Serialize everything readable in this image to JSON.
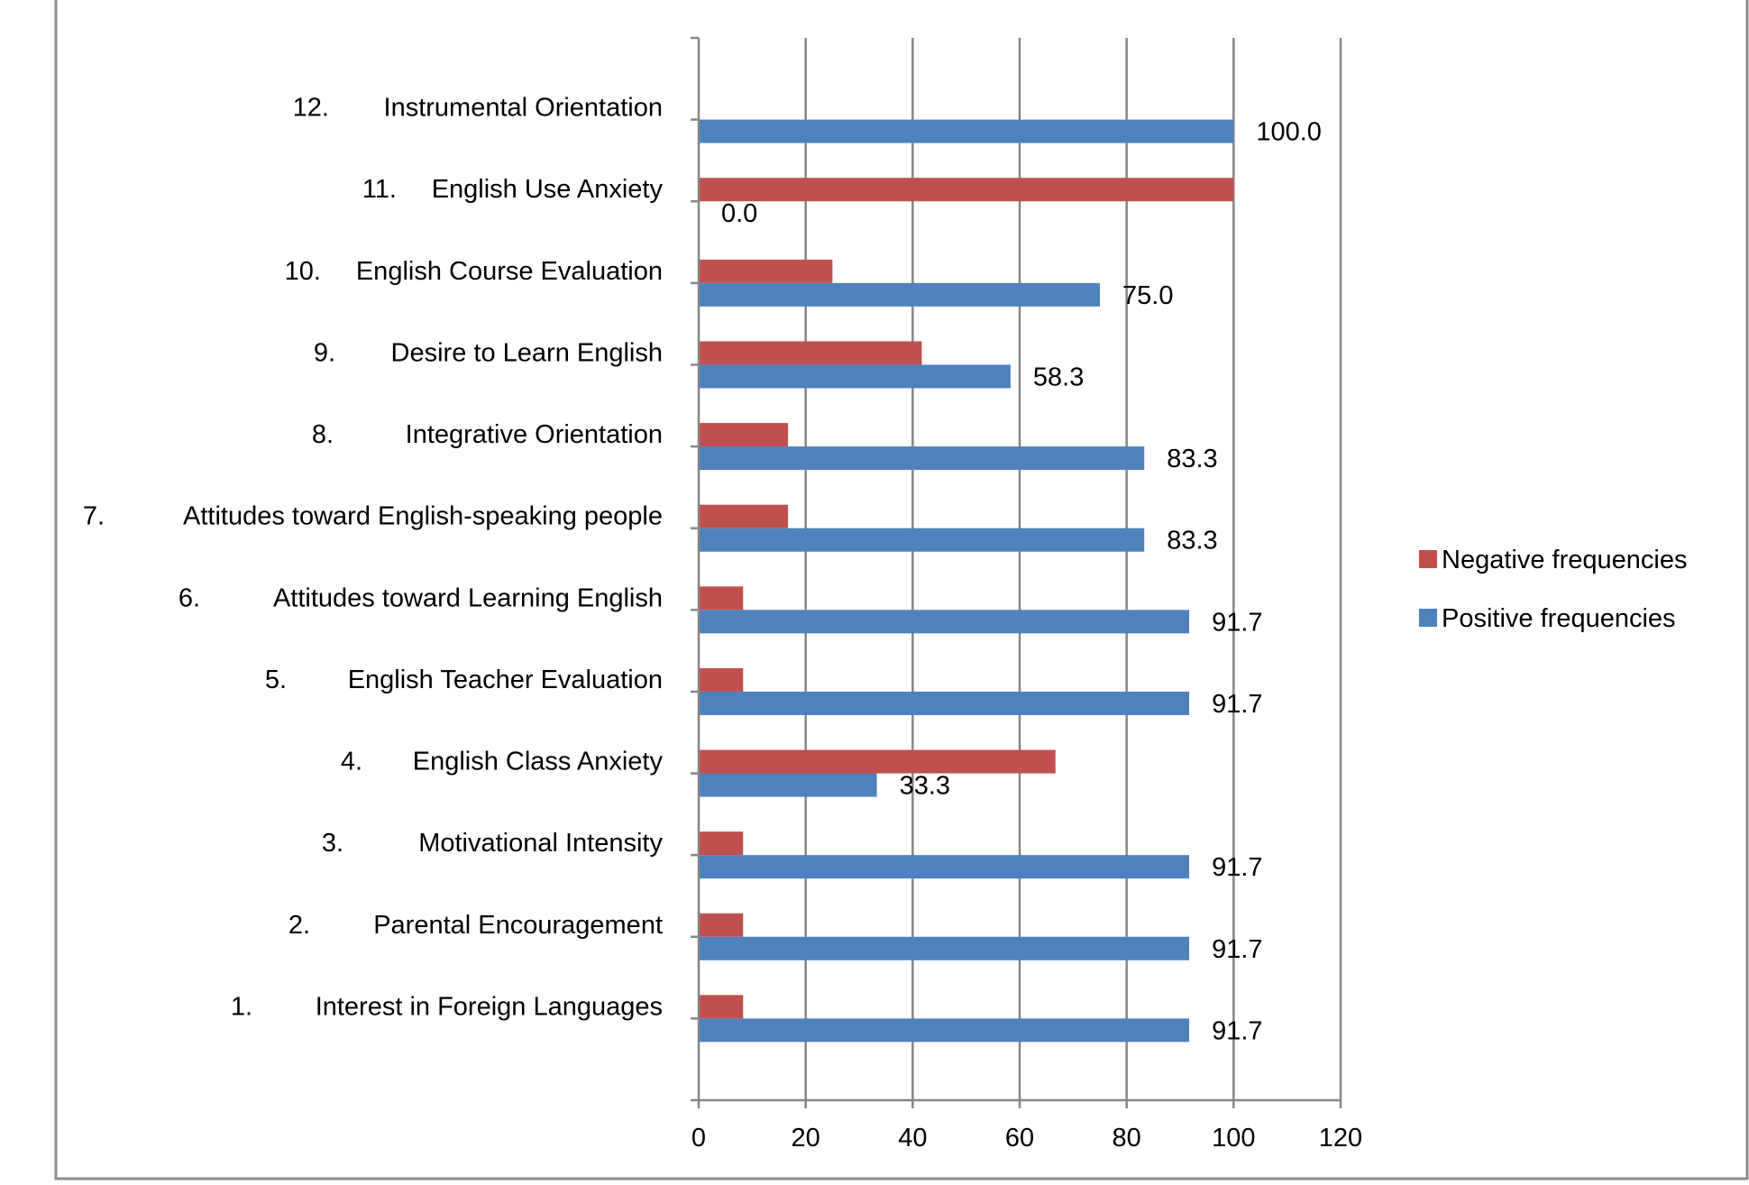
{
  "chart_data": {
    "type": "bar",
    "orientation": "horizontal",
    "categories": [
      {
        "num": "1.",
        "name": "Interest in Foreign Languages"
      },
      {
        "num": "2.",
        "name": "Parental Encouragement"
      },
      {
        "num": "3.",
        "name": "Motivational Intensity"
      },
      {
        "num": "4.",
        "name": "English Class Anxiety"
      },
      {
        "num": "5.",
        "name": "English Teacher Evaluation"
      },
      {
        "num": "6.",
        "name": "Attitudes toward Learning English"
      },
      {
        "num": "7.",
        "name": "Attitudes toward English-speaking people"
      },
      {
        "num": "8.",
        "name": "Integrative Orientation"
      },
      {
        "num": "9.",
        "name": "Desire to Learn English"
      },
      {
        "num": "10.",
        "name": "English Course Evaluation"
      },
      {
        "num": "11.",
        "name": "English Use Anxiety"
      },
      {
        "num": "12.",
        "name": "Instrumental Orientation"
      }
    ],
    "series": [
      {
        "name": "Negative frequencies",
        "color": "#C0504D",
        "values": [
          8.3,
          8.3,
          8.3,
          66.7,
          8.3,
          8.3,
          16.7,
          16.7,
          41.7,
          25.0,
          100.0,
          0.0
        ]
      },
      {
        "name": "Positive frequencies",
        "color": "#4F81BD",
        "values": [
          91.7,
          91.7,
          91.7,
          33.3,
          91.7,
          91.7,
          83.3,
          83.3,
          58.3,
          75.0,
          0.0,
          100.0
        ],
        "data_labels": [
          "91.7",
          "91.7",
          "91.7",
          "33.3",
          "91.7",
          "91.7",
          "83.3",
          "83.3",
          "58.3",
          "75.0",
          "0.0",
          "100.0"
        ]
      }
    ],
    "x_ticks": [
      "0",
      "20",
      "40",
      "60",
      "80",
      "100",
      "120"
    ],
    "xlim": [
      0,
      120
    ],
    "grid": "vertical major gridlines",
    "legend_position": "right",
    "title": "",
    "xlabel": "",
    "ylabel": ""
  }
}
